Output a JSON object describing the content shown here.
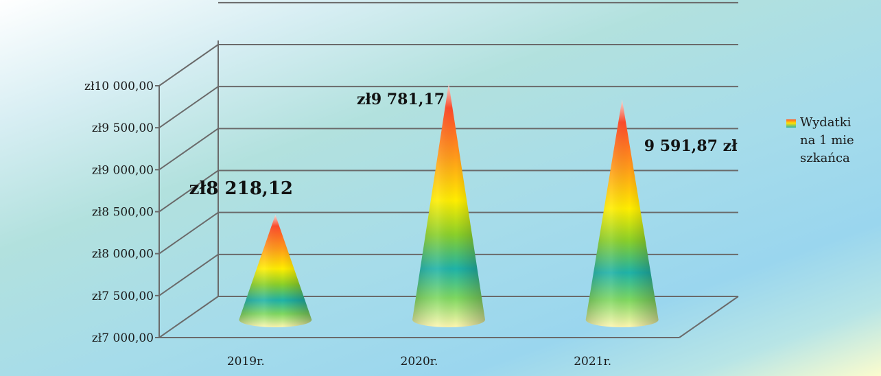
{
  "chart_data": {
    "type": "bar",
    "style": "3d-cone",
    "categories": [
      "2019r.",
      "2020r.",
      "2021r."
    ],
    "series": [
      {
        "name": "Wydatki na 1 mieszkańca",
        "values": [
          8218.12,
          9781.17,
          9591.87
        ]
      }
    ],
    "data_labels": [
      "zł8 218,12",
      "zł9 781,17",
      "9 591,87 zł"
    ],
    "y_ticks": [
      "zł7 000,00",
      "zł7 500,00",
      "zł8 000,00",
      "zł8 500,00",
      "zł9 000,00",
      "zł9 500,00",
      "zł10 000,00"
    ],
    "ylim": [
      7000,
      10000
    ],
    "ystep": 500,
    "xlabel": "",
    "ylabel": "",
    "grid": true,
    "legend_position": "right",
    "colors": {
      "gridline": "#6a6a6a",
      "cone_top": "#ff4a2a",
      "cone_mid": "#ffee00",
      "cone_band": "#1fb3a8",
      "cone_base": "#fff7b0"
    }
  }
}
